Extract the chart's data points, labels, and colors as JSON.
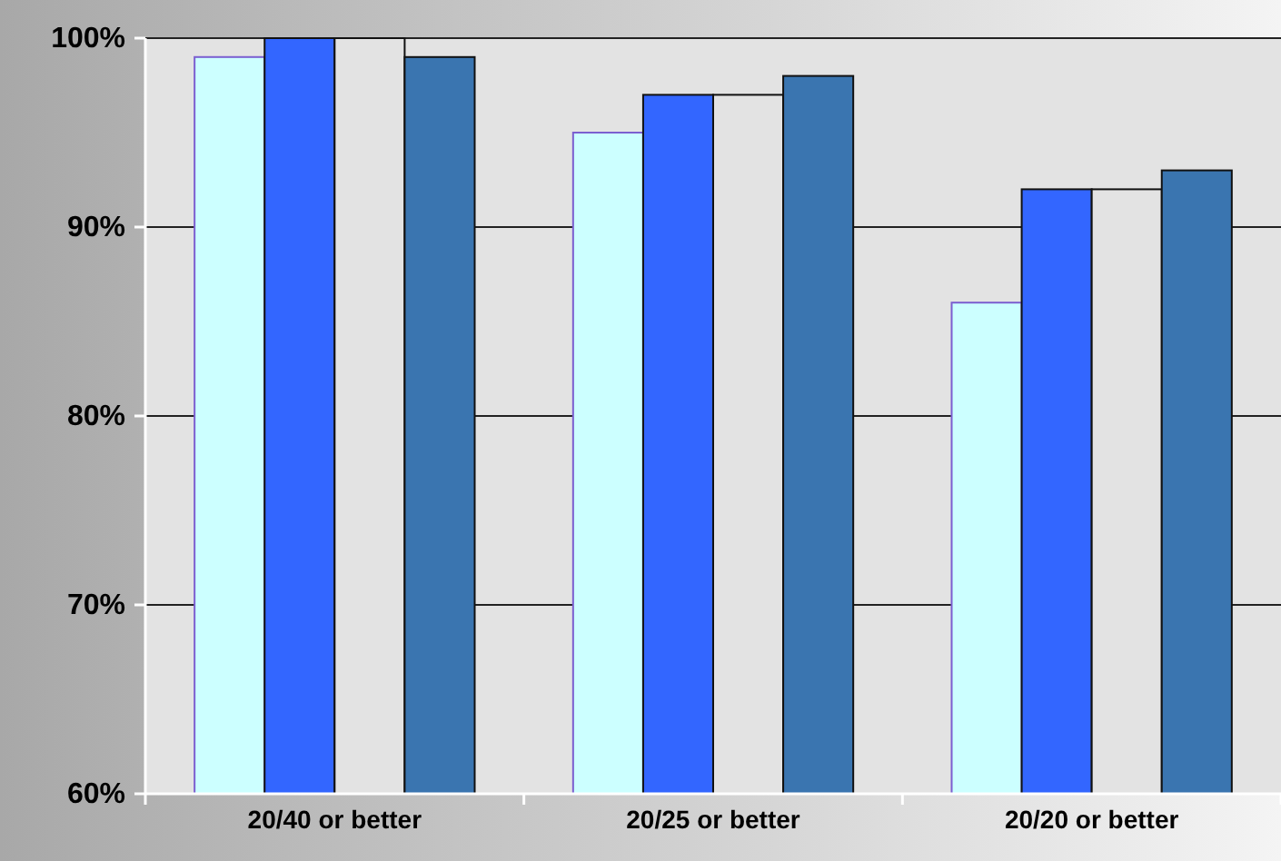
{
  "chart_data": {
    "type": "bar",
    "categories": [
      "20/40 or better",
      "20/25 or better",
      "20/20 or better"
    ],
    "series": [
      {
        "color": "#ccffff",
        "values": [
          99,
          95,
          86
        ]
      },
      {
        "color": "#3366ff",
        "values": [
          100,
          97,
          92
        ]
      },
      {
        "color": "#e3e3e3",
        "values": [
          100,
          97,
          92
        ]
      },
      {
        "color": "#3a75b0",
        "values": [
          99,
          98,
          93
        ]
      }
    ],
    "ylim": [
      60,
      100
    ],
    "yticks": [
      {
        "value": 60,
        "label": "60%"
      },
      {
        "value": 70,
        "label": "70%"
      },
      {
        "value": 80,
        "label": "80%"
      },
      {
        "value": 90,
        "label": "90%"
      },
      {
        "value": 100,
        "label": "100%"
      }
    ],
    "grid": "y"
  }
}
